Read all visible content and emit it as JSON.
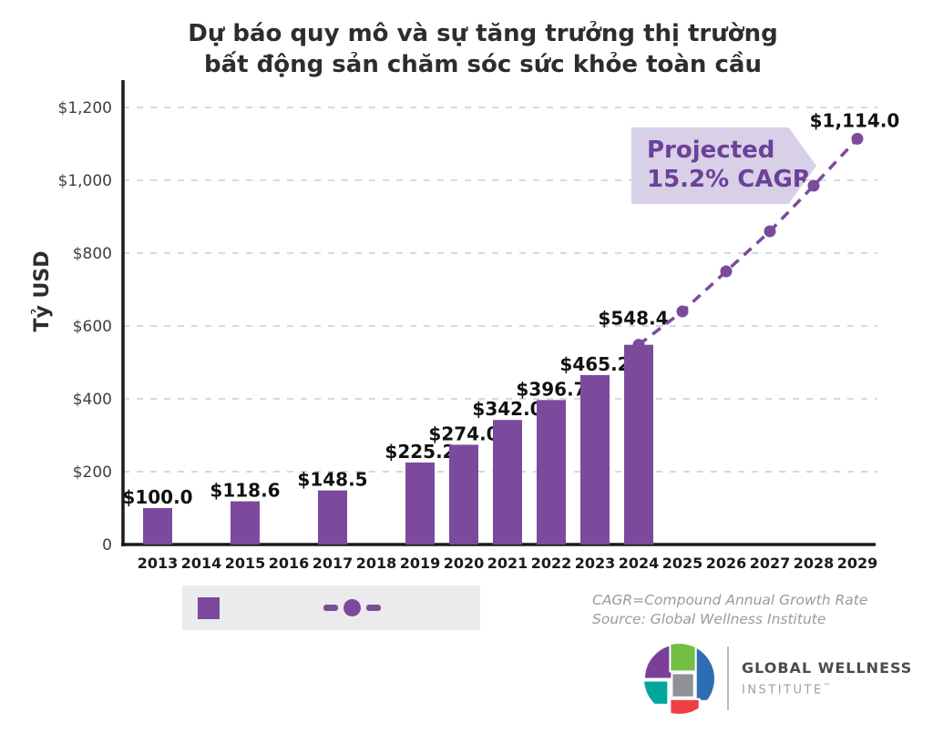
{
  "title": {
    "line1": "Dự báo quy mô và sự tăng trưởng thị trường",
    "line2": "bất động sản chăm sóc sức khỏe toàn cầu"
  },
  "chart_data": {
    "type": "bar+line",
    "title": "Dự báo quy mô và sự tăng trưởng thị trường bất động sản chăm sóc sức khỏe toàn cầu",
    "ylabel": "Tỷ USD",
    "ylim": [
      0,
      1260
    ],
    "grid": "horizontal dashed",
    "legend_position": "bottom-left",
    "y_ticks": [
      {
        "value": 1200,
        "label": "$1,200"
      },
      {
        "value": 1000,
        "label": "$1,000"
      },
      {
        "value": 800,
        "label": "$800"
      },
      {
        "value": 600,
        "label": "$600"
      },
      {
        "value": 400,
        "label": "$400"
      },
      {
        "value": 200,
        "label": "$200"
      },
      {
        "value": 0,
        "label": "0"
      }
    ],
    "x_years": [
      2013,
      2014,
      2015,
      2016,
      2017,
      2018,
      2019,
      2020,
      2021,
      2022,
      2023,
      2024,
      2025,
      2026,
      2027,
      2028,
      2029
    ],
    "bars": [
      {
        "year": 2013,
        "value": 100.0,
        "label": "$100.0"
      },
      {
        "year": 2015,
        "value": 118.6,
        "label": "$118.6"
      },
      {
        "year": 2017,
        "value": 148.5,
        "label": "$148.5"
      },
      {
        "year": 2019,
        "value": 225.2,
        "label": "$225.2"
      },
      {
        "year": 2020,
        "value": 274.0,
        "label": "$274.0"
      },
      {
        "year": 2021,
        "value": 342.0,
        "label": "$342.0"
      },
      {
        "year": 2022,
        "value": 396.7,
        "label": "$396.7"
      },
      {
        "year": 2023,
        "value": 465.2,
        "label": "$465.2"
      },
      {
        "year": 2024,
        "value": 548.4,
        "label": "$548.4"
      }
    ],
    "projection": {
      "callout_line1": "Projected",
      "callout_line2": "15.2% CAGR",
      "points": [
        {
          "year": 2024,
          "value": 548.4
        },
        {
          "year": 2025,
          "value": 640
        },
        {
          "year": 2026,
          "value": 750
        },
        {
          "year": 2027,
          "value": 860
        },
        {
          "year": 2028,
          "value": 985
        },
        {
          "year": 2029,
          "value": 1114.0,
          "label": "$1,114.0"
        }
      ]
    },
    "colors": {
      "bar": "#7c4a9d",
      "line": "#7c4a9d",
      "callout_bg": "#d8d0e6",
      "callout_text": "#6b4199",
      "grid": "#d9d9d9",
      "axis": "#1a1a1a",
      "tick_text": "#3f3f3f",
      "x_tick_text": "#1b1b1b",
      "value_text": "#111111"
    }
  },
  "legend": {
    "bar_symbol": "purple-square-icon",
    "line_symbol": "dashed-line-with-dot-icon"
  },
  "notes": {
    "cagr_definition": "CAGR=Compound Annual Growth Rate",
    "source": "Source: Global Wellness Institute"
  },
  "logo": {
    "name_line1": "GLOBAL WELLNESS",
    "name_line2": "INSTITUTE",
    "trademark": "™"
  }
}
